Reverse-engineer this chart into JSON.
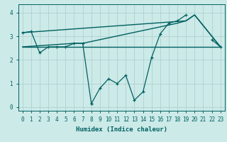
{
  "xlabel": "Humidex (Indice chaleur)",
  "bg_color": "#cceae8",
  "grid_color": "#aacccc",
  "line_color": "#006060",
  "xlim": [
    -0.5,
    23.5
  ],
  "ylim": [
    -0.15,
    4.35
  ],
  "ytick_values": [
    0,
    1,
    2,
    3,
    4
  ],
  "zigzag": {
    "x": [
      0,
      1,
      2,
      3,
      4,
      5,
      6,
      7,
      8,
      8,
      9,
      10,
      11,
      12,
      13,
      14,
      15,
      16,
      17,
      18,
      19,
      20,
      22,
      23
    ],
    "y": [
      3.15,
      3.2,
      2.3,
      2.55,
      2.55,
      2.55,
      2.7,
      2.7,
      0.15,
      0.15,
      0.8,
      1.2,
      1.0,
      1.35,
      0.3,
      0.65,
      2.1,
      3.1,
      3.55,
      3.65,
      3.9,
      null,
      2.85,
      2.55
    ]
  },
  "flat_line": {
    "x": [
      0,
      7,
      23
    ],
    "y": [
      2.55,
      2.55,
      2.55
    ]
  },
  "diag_line": {
    "x": [
      0,
      19,
      20,
      23
    ],
    "y": [
      3.15,
      3.65,
      3.9,
      2.55
    ]
  },
  "diag_line2": {
    "x": [
      0,
      6,
      7,
      18,
      19,
      20,
      23
    ],
    "y": [
      2.55,
      2.7,
      2.7,
      3.55,
      3.65,
      3.9,
      2.55
    ]
  }
}
